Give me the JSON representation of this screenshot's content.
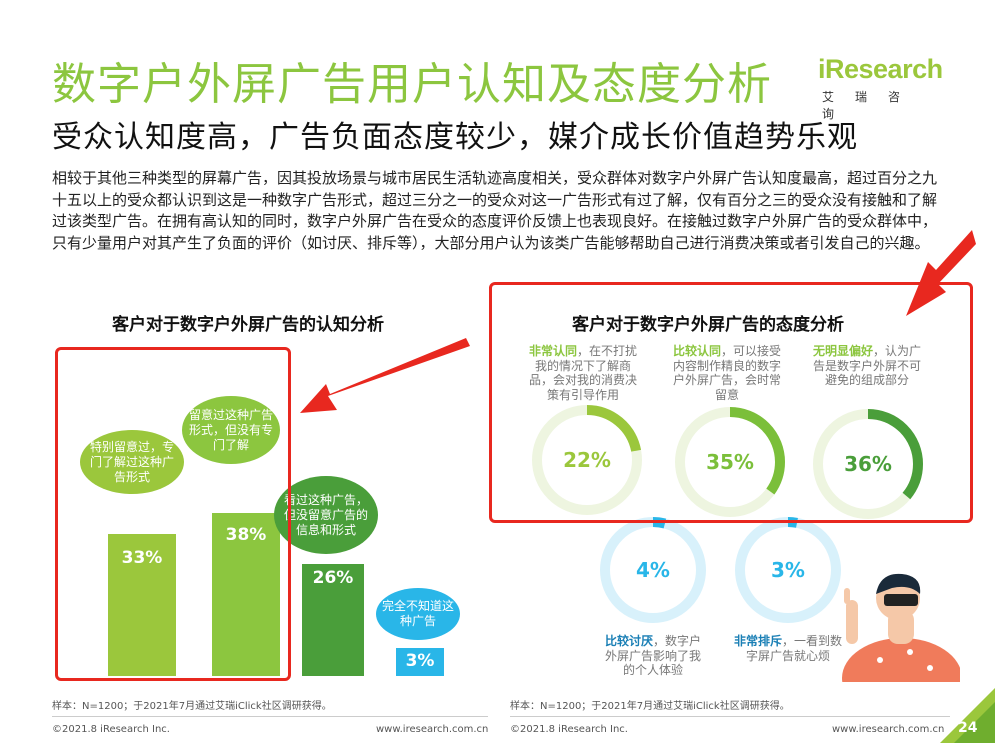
{
  "header": {
    "title": "数字户外屏广告用户认知及态度分析",
    "subtitle": "受众认知度高，广告负面态度较少，媒介成长价值趋势乐观",
    "logo_brand": "iResearch",
    "logo_cn": "艾瑞咨询",
    "intro": "相较于其他三种类型的屏幕广告，因其投放场景与城市居民生活轨迹高度相关，受众群体对数字户外屏广告认知度最高，超过百分之九十五以上的受众都认识到这是一种数字广告形式，超过三分之一的受众对这一广告形式有过了解，仅有百分之三的受众没有接触和了解过该类型广告。在拥有高认知的同时，数字户外屏广告在受众的态度评价反馈上也表现良好。在接触过数字户外屏广告的受众群体中，只有少量用户对其产生了负面的评价（如讨厌、排斥等），大部分用户认为该类广告能够帮助自己进行消费决策或者引发自己的兴趣。"
  },
  "left_panel": {
    "title": "客户对于数字户外屏广告的认知分析",
    "sample_note": "样本：N=1200；于2021年7月通过艾瑞iClick社区调研获得。",
    "copyright": "©2021.8 iResearch Inc.",
    "url": "www.iresearch.com.cn"
  },
  "right_panel": {
    "title": "客户对于数字户外屏广告的态度分析",
    "sample_note": "样本：N=1200；于2021年7月通过艾瑞iClick社区调研获得。",
    "copyright": "©2021.8 iResearch Inc.",
    "url": "www.iresearch.com.cn",
    "page_number": "24"
  },
  "chart_data": [
    {
      "type": "bar",
      "title": "客户对于数字户外屏广告的认知分析",
      "categories": [
        "特别留意过，专门了解过这种广告形式",
        "留意过这种广告形式，但没有专门了解",
        "看过这种广告，但没留意广告的信息和形式",
        "完全不知道这种广告"
      ],
      "values": [
        33,
        38,
        26,
        3
      ],
      "value_labels": [
        "33%",
        "38%",
        "26%",
        "3%"
      ],
      "colors": [
        "#9bc73c",
        "#8cc63f",
        "#4a9e3a",
        "#29b6e8"
      ]
    },
    {
      "type": "pie",
      "title": "客户对于数字户外屏广告的态度分析",
      "items": [
        {
          "strong": "非常认同",
          "text": "，在不打扰我的情况下了解商品，会对我的消费决策有引导作用",
          "value": 22,
          "label": "22%",
          "color": "#9bc73c"
        },
        {
          "strong": "比较认同",
          "text": "，可以接受内容制作精良的数字户外屏广告，会时常留意",
          "value": 35,
          "label": "35%",
          "color": "#7bbf3a"
        },
        {
          "strong": "无明显偏好",
          "text": "，认为广告是数字户外屏不可避免的组成部分",
          "value": 36,
          "label": "36%",
          "color": "#4a9e3a"
        },
        {
          "strong": "比较讨厌",
          "text": "，数字户外屏广告影响了我的个人体验",
          "value": 4,
          "label": "4%",
          "color": "#29b6e8"
        },
        {
          "strong": "非常排斥",
          "text": "，一看到数字屏广告就心烦",
          "value": 3,
          "label": "3%",
          "color": "#29b6e8"
        }
      ]
    }
  ]
}
